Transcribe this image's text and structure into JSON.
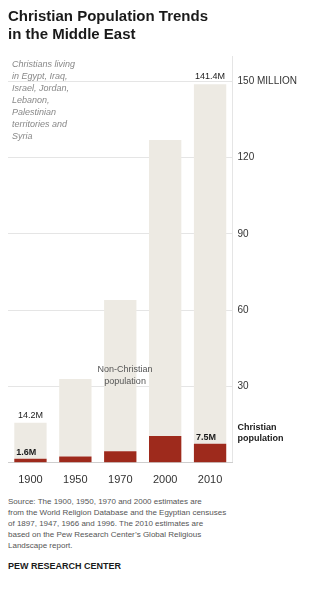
{
  "chart_data": {
    "type": "bar",
    "title": "Christian Population Trends\nin the Middle East",
    "subtitle": "Christians living\nin Egypt, Iraq,\nIsrael, Jordan,\nLebanon,\nPalestinian\nterritories and\nSyria",
    "categories": [
      "1900",
      "1950",
      "1970",
      "2000",
      "2010"
    ],
    "series": [
      {
        "name": "Christian\npopulation",
        "color": "#9e2a1c",
        "values": [
          1.6,
          2.5,
          4.5,
          10.5,
          7.5
        ],
        "value_labels": [
          "1.6M",
          null,
          null,
          null,
          "7.5M"
        ]
      },
      {
        "name": "Non-Christian\npopulation",
        "color": "#edeae3",
        "values": [
          14.2,
          30.5,
          59.5,
          116.5,
          141.4
        ],
        "value_labels": [
          "14.2M",
          null,
          null,
          null,
          "141.4M"
        ]
      }
    ],
    "stacked": true,
    "data_labels": true,
    "ylim": [
      0,
      160
    ],
    "yticks": [
      {
        "value": 0,
        "label": null
      },
      30,
      60,
      90,
      120,
      {
        "value": 150,
        "label": "150 MILLION"
      }
    ],
    "grid": true,
    "source": "Source: The 1900, 1950, 1970 and 2000 estimates are\nfrom the World Religion Database and the Egyptian censuses\nof 1897, 1947, 1966 and 1996. The 2010 estimates are\nbased on the Pew Research Center’s Global Religious\nLandscape report.",
    "footer": "PEW RESEARCH CENTER"
  }
}
